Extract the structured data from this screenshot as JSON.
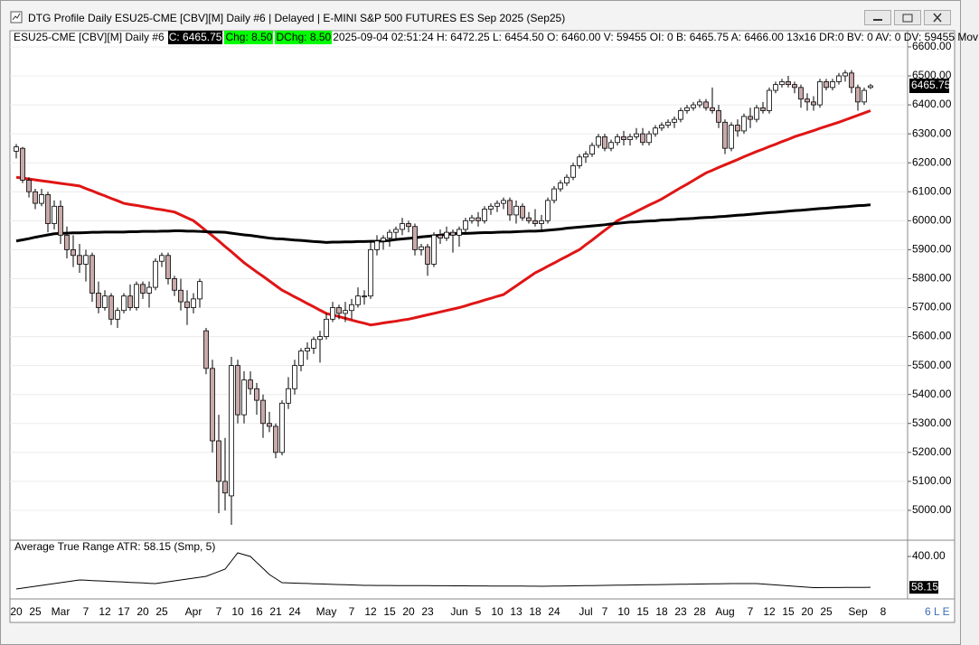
{
  "window": {
    "title": "DTG Profile Daily ESU25-CME [CBV][M]  Daily #6 | Delayed | E-MINI S&P 500 FUTURES ES Sep 2025 (Sep25)",
    "status": "6 L E"
  },
  "chart_data": {
    "type": "candlestick",
    "info": {
      "symbol": "ESU25-CME [CBV][M]  Daily #6",
      "close": "C: 6465.75",
      "change": "Chg: 8.50",
      "dchange": "DChg: 8.50",
      "details": "2025-09-04 02:51:24 H: 6472.25 L: 6454.50 O: 6460.00 V: 59455 OI: 0 B: 6465.75 A: 6466.00 13x16 DR:0 BV: 0 AV: 0 DV: 59455 Mov"
    },
    "last_label": "6465.75",
    "up_color": "#ffffff",
    "down_color": "#c8a9a9",
    "outline_color": "#000000",
    "ylim": [
      4900,
      6656
    ],
    "yticks": [
      {
        "value": 6600,
        "label": "6600.00"
      },
      {
        "value": 6500,
        "label": "6500.00"
      },
      {
        "value": 6400,
        "label": "6400.00"
      },
      {
        "value": 6300,
        "label": "6300.00"
      },
      {
        "value": 6200,
        "label": "6200.00"
      },
      {
        "value": 6100,
        "label": "6100.00"
      },
      {
        "value": 6000,
        "label": "6000.00"
      },
      {
        "value": 5900,
        "label": "5900.00"
      },
      {
        "value": 5800,
        "label": "5800.00"
      },
      {
        "value": 5700,
        "label": "5700.00"
      },
      {
        "value": 5600,
        "label": "5600.00"
      },
      {
        "value": 5500,
        "label": "5500.00"
      },
      {
        "value": 5400,
        "label": "5400.00"
      },
      {
        "value": 5300,
        "label": "5300.00"
      },
      {
        "value": 5200,
        "label": "5200.00"
      },
      {
        "value": 5100,
        "label": "5100.00"
      },
      {
        "value": 5000,
        "label": "5000.00"
      }
    ],
    "grid": true,
    "categories": [
      "20",
      null,
      null,
      "25",
      null,
      null,
      null,
      "Mar",
      null,
      null,
      null,
      "7",
      null,
      null,
      "12",
      null,
      null,
      "17",
      null,
      null,
      "20",
      null,
      null,
      "25",
      null,
      null,
      null,
      null,
      "Apr",
      null,
      null,
      null,
      "7",
      null,
      null,
      "10",
      null,
      null,
      "16",
      null,
      null,
      "21",
      null,
      null,
      "24",
      null,
      null,
      null,
      null,
      "May",
      null,
      null,
      null,
      "7",
      null,
      null,
      "12",
      null,
      null,
      "15",
      null,
      null,
      "20",
      null,
      null,
      "23",
      null,
      null,
      null,
      null,
      "Jun",
      null,
      null,
      "5",
      null,
      null,
      "10",
      null,
      null,
      "13",
      null,
      null,
      "18",
      null,
      null,
      "24",
      null,
      null,
      null,
      null,
      "Jul",
      null,
      null,
      "7",
      null,
      null,
      "10",
      null,
      null,
      "15",
      null,
      null,
      "18",
      null,
      null,
      "23",
      null,
      null,
      "28",
      null,
      null,
      null,
      "Aug",
      null,
      null,
      null,
      "7",
      null,
      null,
      "12",
      null,
      null,
      "15",
      null,
      null,
      "20",
      null,
      null,
      "25",
      null,
      null,
      null,
      null,
      "Sep",
      null,
      null,
      null,
      "8"
    ],
    "ohlc": [
      [
        6240,
        6265,
        6215,
        6255
      ],
      [
        6250,
        6255,
        6130,
        6140
      ],
      [
        6140,
        6150,
        6080,
        6100
      ],
      [
        6100,
        6110,
        6040,
        6060
      ],
      [
        6060,
        6110,
        6050,
        6090
      ],
      [
        6090,
        6100,
        5960,
        5990
      ],
      [
        5990,
        6070,
        5970,
        6050
      ],
      [
        6050,
        6070,
        5920,
        5950
      ],
      [
        5950,
        5980,
        5870,
        5900
      ],
      [
        5900,
        5950,
        5840,
        5880
      ],
      [
        5880,
        5920,
        5820,
        5850
      ],
      [
        5850,
        5900,
        5790,
        5880
      ],
      [
        5880,
        5890,
        5720,
        5750
      ],
      [
        5750,
        5790,
        5680,
        5700
      ],
      [
        5700,
        5760,
        5690,
        5740
      ],
      [
        5740,
        5750,
        5640,
        5660
      ],
      [
        5660,
        5700,
        5630,
        5690
      ],
      [
        5690,
        5750,
        5680,
        5740
      ],
      [
        5740,
        5780,
        5690,
        5700
      ],
      [
        5700,
        5790,
        5690,
        5780
      ],
      [
        5780,
        5790,
        5730,
        5750
      ],
      [
        5750,
        5790,
        5700,
        5770
      ],
      [
        5770,
        5870,
        5760,
        5860
      ],
      [
        5860,
        5890,
        5840,
        5880
      ],
      [
        5880,
        5890,
        5780,
        5800
      ],
      [
        5800,
        5810,
        5740,
        5760
      ],
      [
        5760,
        5800,
        5690,
        5720
      ],
      [
        5720,
        5760,
        5640,
        5700
      ],
      [
        5700,
        5750,
        5680,
        5730
      ],
      [
        5730,
        5800,
        5700,
        5790
      ],
      [
        5620,
        5630,
        5470,
        5490
      ],
      [
        5490,
        5520,
        5200,
        5240
      ],
      [
        5240,
        5330,
        4990,
        5100
      ],
      [
        5100,
        5250,
        5000,
        5060
      ],
      [
        5050,
        5530,
        4950,
        5500
      ],
      [
        5500,
        5520,
        5300,
        5330
      ],
      [
        5330,
        5480,
        5300,
        5450
      ],
      [
        5450,
        5480,
        5400,
        5420
      ],
      [
        5420,
        5440,
        5330,
        5380
      ],
      [
        5380,
        5400,
        5250,
        5300
      ],
      [
        5300,
        5340,
        5270,
        5290
      ],
      [
        5290,
        5300,
        5180,
        5200
      ],
      [
        5200,
        5380,
        5190,
        5370
      ],
      [
        5370,
        5460,
        5350,
        5420
      ],
      [
        5420,
        5520,
        5400,
        5500
      ],
      [
        5500,
        5560,
        5480,
        5550
      ],
      [
        5550,
        5580,
        5520,
        5560
      ],
      [
        5560,
        5600,
        5540,
        5590
      ],
      [
        5590,
        5620,
        5510,
        5600
      ],
      [
        5600,
        5680,
        5590,
        5660
      ],
      [
        5660,
        5720,
        5650,
        5700
      ],
      [
        5700,
        5710,
        5660,
        5680
      ],
      [
        5680,
        5720,
        5650,
        5690
      ],
      [
        5690,
        5730,
        5660,
        5710
      ],
      [
        5710,
        5770,
        5700,
        5740
      ],
      [
        5740,
        5760,
        5710,
        5740
      ],
      [
        5740,
        5930,
        5730,
        5900
      ],
      [
        5900,
        5950,
        5880,
        5930
      ],
      [
        5930,
        5950,
        5900,
        5940
      ],
      [
        5940,
        5970,
        5910,
        5960
      ],
      [
        5960,
        5980,
        5940,
        5970
      ],
      [
        5970,
        6010,
        5950,
        5990
      ],
      [
        5990,
        6000,
        5960,
        5980
      ],
      [
        5980,
        5990,
        5880,
        5900
      ],
      [
        5900,
        5920,
        5880,
        5910
      ],
      [
        5910,
        5920,
        5810,
        5850
      ],
      [
        5850,
        5960,
        5840,
        5950
      ],
      [
        5950,
        5970,
        5920,
        5940
      ],
      [
        5940,
        5980,
        5930,
        5960
      ],
      [
        5960,
        5970,
        5890,
        5950
      ],
      [
        5950,
        5980,
        5910,
        5970
      ],
      [
        5970,
        6010,
        5960,
        6000
      ],
      [
        6000,
        6020,
        5990,
        6010
      ],
      [
        6010,
        6030,
        5980,
        6000
      ],
      [
        6000,
        6050,
        5990,
        6040
      ],
      [
        6040,
        6060,
        6020,
        6050
      ],
      [
        6050,
        6070,
        6030,
        6060
      ],
      [
        6060,
        6080,
        6040,
        6070
      ],
      [
        6070,
        6080,
        6000,
        6020
      ],
      [
        6020,
        6070,
        5990,
        6050
      ],
      [
        6050,
        6060,
        6000,
        6010
      ],
      [
        6010,
        6030,
        5990,
        6000
      ],
      [
        6000,
        6040,
        5980,
        5990
      ],
      [
        5990,
        6020,
        5960,
        6000
      ],
      [
        6000,
        6080,
        5990,
        6070
      ],
      [
        6070,
        6120,
        6060,
        6110
      ],
      [
        6110,
        6140,
        6100,
        6130
      ],
      [
        6130,
        6160,
        6120,
        6150
      ],
      [
        6150,
        6200,
        6140,
        6190
      ],
      [
        6190,
        6230,
        6180,
        6220
      ],
      [
        6220,
        6240,
        6200,
        6230
      ],
      [
        6230,
        6270,
        6220,
        6260
      ],
      [
        6260,
        6300,
        6250,
        6290
      ],
      [
        6290,
        6300,
        6240,
        6250
      ],
      [
        6250,
        6280,
        6240,
        6270
      ],
      [
        6270,
        6300,
        6260,
        6290
      ],
      [
        6290,
        6310,
        6260,
        6280
      ],
      [
        6280,
        6300,
        6260,
        6290
      ],
      [
        6290,
        6320,
        6280,
        6300
      ],
      [
        6300,
        6320,
        6260,
        6270
      ],
      [
        6270,
        6310,
        6260,
        6300
      ],
      [
        6300,
        6330,
        6290,
        6320
      ],
      [
        6320,
        6340,
        6310,
        6330
      ],
      [
        6330,
        6350,
        6320,
        6340
      ],
      [
        6340,
        6360,
        6320,
        6350
      ],
      [
        6350,
        6390,
        6340,
        6380
      ],
      [
        6380,
        6400,
        6370,
        6390
      ],
      [
        6390,
        6410,
        6380,
        6400
      ],
      [
        6400,
        6420,
        6390,
        6410
      ],
      [
        6410,
        6420,
        6380,
        6390
      ],
      [
        6390,
        6460,
        6370,
        6380
      ],
      [
        6380,
        6400,
        6320,
        6340
      ],
      [
        6340,
        6350,
        6230,
        6250
      ],
      [
        6250,
        6340,
        6240,
        6330
      ],
      [
        6330,
        6350,
        6290,
        6310
      ],
      [
        6310,
        6370,
        6300,
        6360
      ],
      [
        6360,
        6390,
        6320,
        6350
      ],
      [
        6350,
        6400,
        6340,
        6390
      ],
      [
        6390,
        6410,
        6370,
        6380
      ],
      [
        6380,
        6460,
        6370,
        6450
      ],
      [
        6450,
        6480,
        6440,
        6470
      ],
      [
        6470,
        6490,
        6460,
        6480
      ],
      [
        6480,
        6500,
        6460,
        6470
      ],
      [
        6470,
        6480,
        6440,
        6460
      ],
      [
        6460,
        6470,
        6390,
        6420
      ],
      [
        6420,
        6440,
        6380,
        6410
      ],
      [
        6410,
        6430,
        6380,
        6400
      ],
      [
        6400,
        6490,
        6390,
        6480
      ],
      [
        6480,
        6490,
        6450,
        6460
      ],
      [
        6460,
        6490,
        6450,
        6480
      ],
      [
        6480,
        6510,
        6470,
        6500
      ],
      [
        6500,
        6520,
        6480,
        6510
      ],
      [
        6510,
        6520,
        6440,
        6460
      ],
      [
        6460,
        6470,
        6380,
        6410
      ],
      [
        6410,
        6460,
        6400,
        6450
      ],
      [
        6460.0,
        6472.25,
        6454.5,
        6465.75
      ]
    ],
    "lines": [
      {
        "color": "#e01515",
        "values": [
          6150,
          6147,
          6144,
          6141,
          6138,
          6135,
          6132,
          6129,
          6126,
          6123,
          6120,
          6111,
          6103,
          6094,
          6086,
          6077,
          6069,
          6060,
          6056,
          6053,
          6049,
          6045,
          6041,
          6038,
          6034,
          6030,
          6020,
          6010,
          6000,
          5983,
          5965,
          5948,
          5930,
          5911,
          5893,
          5874,
          5855,
          5839,
          5823,
          5808,
          5792,
          5776,
          5760,
          5749,
          5737,
          5726,
          5714,
          5703,
          5691,
          5680,
          5674,
          5669,
          5663,
          5657,
          5651,
          5646,
          5640,
          5643,
          5647,
          5650,
          5653,
          5657,
          5660,
          5665,
          5670,
          5675,
          5680,
          5685,
          5690,
          5695,
          5700,
          5706,
          5713,
          5719,
          5726,
          5732,
          5739,
          5745,
          5760,
          5775,
          5790,
          5805,
          5820,
          5831,
          5843,
          5854,
          5866,
          5877,
          5889,
          5900,
          5917,
          5933,
          5950,
          5967,
          5983,
          6000,
          6011,
          6021,
          6032,
          6043,
          6054,
          6064,
          6075,
          6088,
          6101,
          6114,
          6126,
          6139,
          6152,
          6165,
          6174,
          6184,
          6193,
          6202,
          6211,
          6221,
          6230,
          6239,
          6247,
          6256,
          6264,
          6273,
          6281,
          6290,
          6297,
          6304,
          6311,
          6319,
          6326,
          6333,
          6340,
          6348,
          6356,
          6364,
          6372,
          6380
        ]
      },
      {
        "color": "#000000",
        "values": [
          5930,
          5934,
          5938,
          5943,
          5947,
          5951,
          5955,
          5956,
          5957,
          5958,
          5958,
          5959,
          5960,
          5960,
          5961,
          5961,
          5961,
          5961,
          5962,
          5962,
          5963,
          5963,
          5963,
          5964,
          5964,
          5965,
          5965,
          5964,
          5964,
          5963,
          5962,
          5961,
          5961,
          5960,
          5957,
          5954,
          5951,
          5949,
          5946,
          5943,
          5940,
          5938,
          5937,
          5935,
          5933,
          5932,
          5930,
          5928,
          5927,
          5925,
          5926,
          5926,
          5927,
          5927,
          5928,
          5928,
          5929,
          5929,
          5930,
          5932,
          5935,
          5937,
          5939,
          5941,
          5944,
          5946,
          5948,
          5950,
          5953,
          5955,
          5956,
          5956,
          5957,
          5958,
          5959,
          5959,
          5960,
          5961,
          5961,
          5962,
          5963,
          5964,
          5964,
          5965,
          5967,
          5969,
          5971,
          5974,
          5976,
          5978,
          5980,
          5982,
          5984,
          5986,
          5989,
          5991,
          5993,
          5995,
          5996,
          5998,
          5999,
          6000,
          6002,
          6003,
          6004,
          6006,
          6007,
          6008,
          6010,
          6011,
          6012,
          6014,
          6015,
          6017,
          6019,
          6020,
          6022,
          6024,
          6026,
          6028,
          6029,
          6031,
          6033,
          6035,
          6036,
          6038,
          6040,
          6042,
          6043,
          6045,
          6047,
          6048,
          6050,
          6052,
          6053,
          6055
        ]
      }
    ],
    "indicator": {
      "title": "Average True Range  ATR: 58.15  (Smp, 5)",
      "value_label": "58.15",
      "color": "#000000",
      "ylim": [
        -70,
        580
      ],
      "yticks": [
        {
          "value": 400,
          "label": "400.00"
        }
      ],
      "values": [
        40,
        50,
        60,
        70,
        80,
        90,
        100,
        110,
        120,
        130,
        140,
        137,
        133,
        130,
        127,
        123,
        120,
        117,
        113,
        110,
        107,
        103,
        100,
        110,
        120,
        130,
        140,
        150,
        160,
        170,
        180,
        207,
        233,
        260,
        350,
        440,
        420,
        400,
        333,
        267,
        200,
        155,
        110,
        108,
        105,
        103,
        101,
        98,
        96,
        94,
        91,
        89,
        87,
        85,
        82,
        80,
        80,
        79,
        79,
        79,
        78,
        78,
        78,
        77,
        77,
        77,
        76,
        76,
        76,
        75,
        75,
        75,
        74,
        74,
        74,
        73,
        73,
        73,
        72,
        72,
        72,
        71,
        71,
        70,
        71,
        72,
        73,
        74,
        75,
        76,
        77,
        78,
        79,
        80,
        81,
        82,
        83,
        84,
        85,
        86,
        87,
        88,
        89,
        90,
        91,
        92,
        93,
        94,
        95,
        96,
        97,
        98,
        99,
        100,
        100,
        100,
        100,
        100,
        95,
        90,
        85,
        80,
        75,
        70,
        65,
        60,
        55,
        55,
        56,
        56,
        56,
        57,
        57,
        57,
        58,
        58.15
      ]
    }
  }
}
